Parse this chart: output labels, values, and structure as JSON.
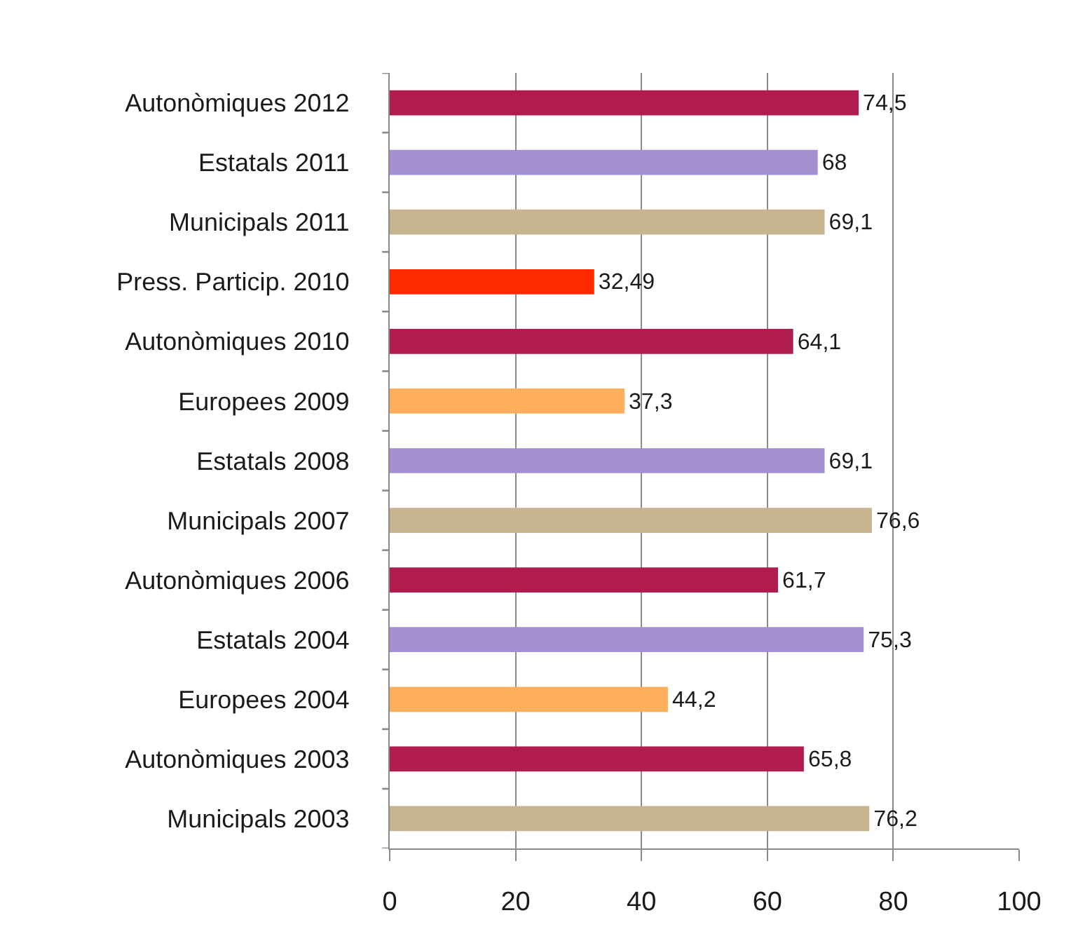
{
  "chart_data": {
    "type": "bar",
    "orientation": "horizontal",
    "categories": [
      "Autonòmiques 2012",
      "Estatals 2011",
      "Municipals 2011",
      "Press. Particip. 2010",
      "Autonòmiques 2010",
      "Europees 2009",
      "Estatals 2008",
      "Municipals 2007",
      "Autonòmiques 2006",
      "Estatals 2004",
      "Europees 2004",
      "Autonòmiques 2003",
      "Municipals 2003"
    ],
    "values": [
      74.5,
      68,
      69.1,
      32.49,
      64.1,
      37.3,
      69.1,
      76.6,
      61.7,
      75.3,
      44.2,
      65.8,
      76.2
    ],
    "value_labels": [
      "74,5",
      "68",
      "69,1",
      "32,49",
      "64,1",
      "37,3",
      "69,1",
      "76,6",
      "61,7",
      "75,3",
      "44,2",
      "65,8",
      "76,2"
    ],
    "colors": [
      "#b01c4c",
      "#a48fd0",
      "#c8b48e",
      "#ff2a00",
      "#b01c4c",
      "#ffae5e",
      "#a48fd0",
      "#c8b48e",
      "#b01c4c",
      "#a48fd0",
      "#ffae5e",
      "#b01c4c",
      "#c8b48e"
    ],
    "xlim": [
      0,
      100
    ],
    "xticks": [
      0,
      20,
      40,
      60,
      80,
      100
    ],
    "grid": "x"
  }
}
